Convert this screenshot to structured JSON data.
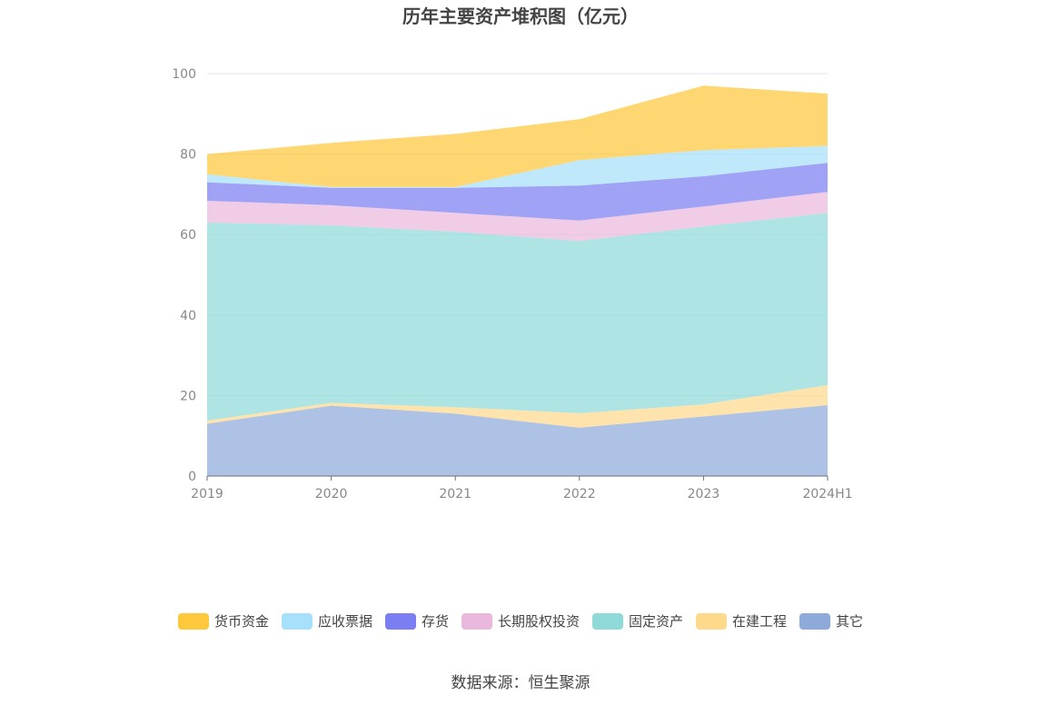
{
  "chart_data": {
    "type": "area",
    "stacked": true,
    "title": "历年主要资产堆积图（亿元）",
    "categories": [
      "2019",
      "2020",
      "2021",
      "2022",
      "2023",
      "2024H1"
    ],
    "y_ticks": [
      "0",
      "20",
      "40",
      "60",
      "80",
      "100"
    ],
    "ylim": [
      0,
      100
    ],
    "grid": true,
    "legend_position": "bottom",
    "series": [
      {
        "name": "其它",
        "color": "#8eaadb",
        "values": [
          13.0,
          17.5,
          15.5,
          12.0,
          14.8,
          17.6
        ]
      },
      {
        "name": "在建工程",
        "color": "#fdd98c",
        "values": [
          0.8,
          0.7,
          1.6,
          3.6,
          3.0,
          5.0
        ]
      },
      {
        "name": "固定资产",
        "color": "#8fd9d9",
        "values": [
          49.2,
          44.1,
          43.6,
          42.8,
          44.2,
          42.8
        ]
      },
      {
        "name": "长期股权投资",
        "color": "#eab8dc",
        "values": [
          5.4,
          5.0,
          4.7,
          5.1,
          5.0,
          5.2
        ]
      },
      {
        "name": "存货",
        "color": "#7b7ef2",
        "values": [
          4.6,
          4.3,
          6.2,
          8.7,
          7.5,
          7.2
        ]
      },
      {
        "name": "应收票据",
        "color": "#a6e0fa",
        "values": [
          2.0,
          0.2,
          0.2,
          6.3,
          6.5,
          4.2
        ]
      },
      {
        "name": "货币资金",
        "color": "#fdc83c",
        "values": [
          5.0,
          11.0,
          13.2,
          10.2,
          16.0,
          13.0
        ]
      }
    ],
    "legend_order": [
      "货币资金",
      "应收票据",
      "存货",
      "长期股权投资",
      "固定资产",
      "在建工程",
      "其它"
    ]
  },
  "source": "数据来源：恒生聚源"
}
